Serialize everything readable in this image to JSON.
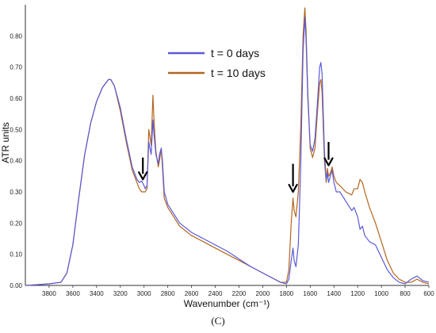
{
  "chart_data": {
    "type": "line",
    "panel_label": "(C)",
    "xlabel": "Wavenumber (cm⁻¹)",
    "ylabel": "ATR units",
    "xlim": [
      4000,
      600
    ],
    "ylim": [
      0,
      0.9
    ],
    "x_ticks": [
      3800,
      3600,
      3400,
      3200,
      3000,
      2800,
      2600,
      2400,
      2200,
      2000,
      1800,
      1600,
      1400,
      1200,
      1000,
      800,
      600
    ],
    "y_ticks": [
      0.0,
      0.1,
      0.2,
      0.3,
      0.4,
      0.5,
      0.6,
      0.7,
      0.8
    ],
    "y_tick_labels": [
      "0.00",
      "0.10",
      "0.20",
      "0.30",
      "0.40",
      "0.50",
      "0.60",
      "0.70",
      "0.80"
    ],
    "grid": false,
    "legend_position": "top-center",
    "series": [
      {
        "name": "t = 0 days",
        "color": "#5a5ad8",
        "points": [
          [
            3990,
            0.0
          ],
          [
            3800,
            0.005
          ],
          [
            3700,
            0.01
          ],
          [
            3650,
            0.04
          ],
          [
            3600,
            0.13
          ],
          [
            3550,
            0.28
          ],
          [
            3500,
            0.42
          ],
          [
            3450,
            0.52
          ],
          [
            3400,
            0.59
          ],
          [
            3350,
            0.635
          ],
          [
            3300,
            0.66
          ],
          [
            3280,
            0.66
          ],
          [
            3250,
            0.64
          ],
          [
            3200,
            0.57
          ],
          [
            3150,
            0.47
          ],
          [
            3100,
            0.38
          ],
          [
            3060,
            0.34
          ],
          [
            3040,
            0.33
          ],
          [
            3020,
            0.335
          ],
          [
            3000,
            0.32
          ],
          [
            2990,
            0.31
          ],
          [
            2975,
            0.32
          ],
          [
            2960,
            0.46
          ],
          [
            2940,
            0.42
          ],
          [
            2925,
            0.53
          ],
          [
            2915,
            0.48
          ],
          [
            2900,
            0.42
          ],
          [
            2880,
            0.39
          ],
          [
            2870,
            0.42
          ],
          [
            2855,
            0.44
          ],
          [
            2845,
            0.4
          ],
          [
            2830,
            0.3
          ],
          [
            2800,
            0.26
          ],
          [
            2750,
            0.23
          ],
          [
            2700,
            0.2
          ],
          [
            2600,
            0.17
          ],
          [
            2500,
            0.15
          ],
          [
            2400,
            0.13
          ],
          [
            2300,
            0.11
          ],
          [
            2200,
            0.085
          ],
          [
            2100,
            0.06
          ],
          [
            2000,
            0.04
          ],
          [
            1900,
            0.02
          ],
          [
            1850,
            0.01
          ],
          [
            1800,
            0.005
          ],
          [
            1780,
            0.02
          ],
          [
            1760,
            0.08
          ],
          [
            1745,
            0.12
          ],
          [
            1735,
            0.08
          ],
          [
            1720,
            0.06
          ],
          [
            1700,
            0.13
          ],
          [
            1680,
            0.38
          ],
          [
            1660,
            0.75
          ],
          [
            1645,
            0.86
          ],
          [
            1635,
            0.79
          ],
          [
            1620,
            0.6
          ],
          [
            1600,
            0.45
          ],
          [
            1580,
            0.43
          ],
          [
            1560,
            0.47
          ],
          [
            1540,
            0.58
          ],
          [
            1520,
            0.7
          ],
          [
            1510,
            0.715
          ],
          [
            1500,
            0.68
          ],
          [
            1480,
            0.43
          ],
          [
            1465,
            0.34
          ],
          [
            1455,
            0.36
          ],
          [
            1445,
            0.33
          ],
          [
            1430,
            0.35
          ],
          [
            1415,
            0.37
          ],
          [
            1400,
            0.33
          ],
          [
            1380,
            0.3
          ],
          [
            1350,
            0.3
          ],
          [
            1300,
            0.27
          ],
          [
            1250,
            0.24
          ],
          [
            1230,
            0.25
          ],
          [
            1200,
            0.22
          ],
          [
            1180,
            0.18
          ],
          [
            1160,
            0.19
          ],
          [
            1140,
            0.16
          ],
          [
            1100,
            0.14
          ],
          [
            1050,
            0.13
          ],
          [
            1000,
            0.09
          ],
          [
            950,
            0.05
          ],
          [
            900,
            0.025
          ],
          [
            850,
            0.01
          ],
          [
            800,
            0.005
          ],
          [
            750,
            0.02
          ],
          [
            700,
            0.03
          ],
          [
            650,
            0.015
          ],
          [
            600,
            0.01
          ]
        ]
      },
      {
        "name": "t = 10 days",
        "color": "#b5651d",
        "points": [
          [
            3990,
            0.0
          ],
          [
            3800,
            0.005
          ],
          [
            3700,
            0.01
          ],
          [
            3650,
            0.04
          ],
          [
            3600,
            0.13
          ],
          [
            3550,
            0.28
          ],
          [
            3500,
            0.42
          ],
          [
            3450,
            0.52
          ],
          [
            3400,
            0.59
          ],
          [
            3350,
            0.635
          ],
          [
            3300,
            0.66
          ],
          [
            3280,
            0.66
          ],
          [
            3250,
            0.64
          ],
          [
            3200,
            0.56
          ],
          [
            3150,
            0.46
          ],
          [
            3100,
            0.37
          ],
          [
            3060,
            0.33
          ],
          [
            3040,
            0.31
          ],
          [
            3020,
            0.3
          ],
          [
            3000,
            0.3
          ],
          [
            2990,
            0.3
          ],
          [
            2975,
            0.31
          ],
          [
            2960,
            0.5
          ],
          [
            2940,
            0.45
          ],
          [
            2925,
            0.61
          ],
          [
            2915,
            0.52
          ],
          [
            2900,
            0.43
          ],
          [
            2880,
            0.38
          ],
          [
            2870,
            0.4
          ],
          [
            2855,
            0.44
          ],
          [
            2845,
            0.38
          ],
          [
            2830,
            0.28
          ],
          [
            2800,
            0.25
          ],
          [
            2750,
            0.22
          ],
          [
            2700,
            0.19
          ],
          [
            2600,
            0.16
          ],
          [
            2500,
            0.14
          ],
          [
            2400,
            0.12
          ],
          [
            2300,
            0.1
          ],
          [
            2200,
            0.08
          ],
          [
            2100,
            0.06
          ],
          [
            2000,
            0.04
          ],
          [
            1900,
            0.02
          ],
          [
            1850,
            0.01
          ],
          [
            1800,
            0.01
          ],
          [
            1780,
            0.05
          ],
          [
            1760,
            0.2
          ],
          [
            1745,
            0.28
          ],
          [
            1735,
            0.24
          ],
          [
            1720,
            0.22
          ],
          [
            1700,
            0.3
          ],
          [
            1680,
            0.5
          ],
          [
            1660,
            0.8
          ],
          [
            1645,
            0.89
          ],
          [
            1635,
            0.82
          ],
          [
            1620,
            0.62
          ],
          [
            1600,
            0.44
          ],
          [
            1580,
            0.41
          ],
          [
            1560,
            0.44
          ],
          [
            1540,
            0.55
          ],
          [
            1520,
            0.65
          ],
          [
            1510,
            0.66
          ],
          [
            1500,
            0.62
          ],
          [
            1480,
            0.4
          ],
          [
            1465,
            0.33
          ],
          [
            1455,
            0.375
          ],
          [
            1445,
            0.35
          ],
          [
            1430,
            0.36
          ],
          [
            1415,
            0.38
          ],
          [
            1400,
            0.35
          ],
          [
            1380,
            0.33
          ],
          [
            1350,
            0.32
          ],
          [
            1300,
            0.3
          ],
          [
            1250,
            0.29
          ],
          [
            1230,
            0.31
          ],
          [
            1200,
            0.31
          ],
          [
            1180,
            0.34
          ],
          [
            1160,
            0.33
          ],
          [
            1140,
            0.3
          ],
          [
            1100,
            0.25
          ],
          [
            1050,
            0.2
          ],
          [
            1000,
            0.14
          ],
          [
            950,
            0.08
          ],
          [
            900,
            0.04
          ],
          [
            850,
            0.02
          ],
          [
            800,
            0.01
          ],
          [
            750,
            0.01
          ],
          [
            700,
            0.02
          ],
          [
            650,
            0.01
          ],
          [
            600,
            0.005
          ]
        ]
      }
    ],
    "annotations": [
      {
        "type": "arrow-down",
        "x": 3010,
        "y_top": 0.41,
        "y_tip": 0.34
      },
      {
        "type": "arrow-down",
        "x": 1745,
        "y_top": 0.39,
        "y_tip": 0.3
      },
      {
        "type": "arrow-down",
        "x": 1445,
        "y_top": 0.46,
        "y_tip": 0.385
      }
    ]
  }
}
